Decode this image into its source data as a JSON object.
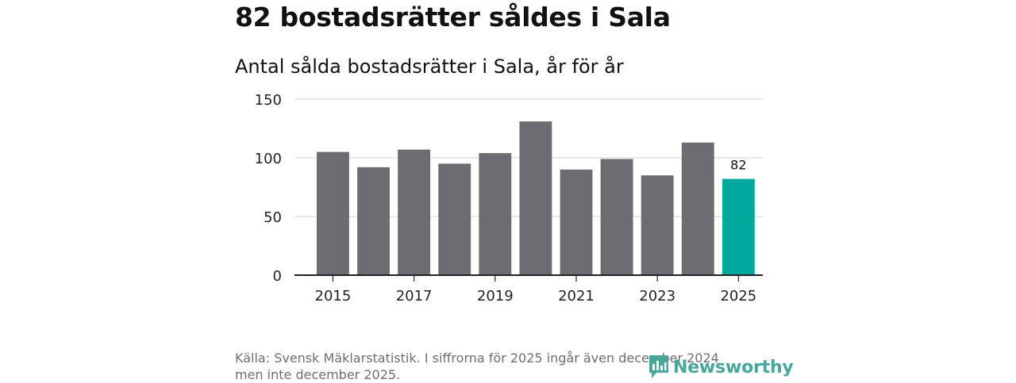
{
  "headline": "82 bostadsrätter såldes i Sala",
  "chart_data": {
    "type": "bar",
    "title": "Antal sålda bostadsrätter i Sala, år för år",
    "xlabel": "",
    "ylabel": "",
    "categories": [
      "2015",
      "2016",
      "2017",
      "2018",
      "2019",
      "2020",
      "2021",
      "2022",
      "2023",
      "2024",
      "2025"
    ],
    "values": [
      105,
      92,
      107,
      95,
      104,
      131,
      90,
      99,
      85,
      113,
      82
    ],
    "ylim": [
      0,
      150
    ],
    "yticks": [
      0,
      50,
      100,
      150
    ],
    "xticks": [
      "2015",
      "2017",
      "2019",
      "2021",
      "2023",
      "2025"
    ],
    "data_labels": [
      {
        "category": "2025",
        "text": "82"
      }
    ],
    "highlight_category": "2025",
    "grid": true,
    "colors": {
      "default": "#6d6c71",
      "highlight": "#00a79d",
      "grid": "#d9d9d9",
      "axis": "#222222"
    }
  },
  "source": "Källa: Svensk Mäklarstatistik. I siffrorna för 2025 ingår även december 2024 men inte december 2025.",
  "brand": {
    "name": "Newsworthy",
    "icon": "newsworthy-logo-icon",
    "color": "#4aa69a"
  }
}
